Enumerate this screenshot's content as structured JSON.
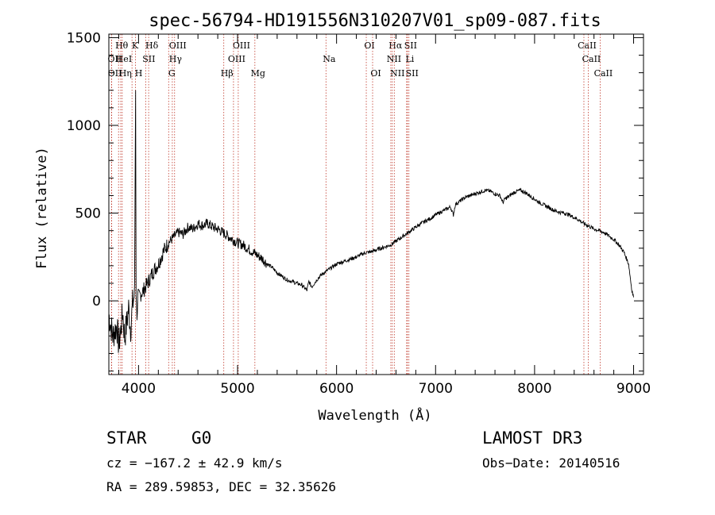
{
  "chart_data": {
    "type": "line",
    "title": "spec-56794-HD191556N310207V01_sp09-087.fits",
    "xlabel": "Wavelength (Å)",
    "ylabel": "Flux (relative)",
    "xlim": [
      3700,
      9100
    ],
    "ylim": [
      -420,
      1520
    ],
    "xticks": [
      4000,
      5000,
      6000,
      7000,
      8000,
      9000
    ],
    "yticks": [
      0,
      500,
      1000,
      1500
    ],
    "series": [
      {
        "name": "flux",
        "x": [
          3700,
          3740,
          3780,
          3800,
          3820,
          3840,
          3860,
          3880,
          3900,
          3920,
          3940,
          3960,
          3970,
          3975,
          3980,
          4000,
          4050,
          4100,
          4150,
          4200,
          4250,
          4300,
          4350,
          4400,
          4450,
          4500,
          4550,
          4600,
          4650,
          4700,
          4750,
          4800,
          4850,
          4900,
          4950,
          5000,
          5050,
          5100,
          5150,
          5200,
          5250,
          5300,
          5350,
          5400,
          5450,
          5500,
          5550,
          5600,
          5650,
          5700,
          5720,
          5750,
          5800,
          5850,
          5900,
          5950,
          6000,
          6050,
          6100,
          6150,
          6200,
          6250,
          6300,
          6350,
          6400,
          6450,
          6500,
          6550,
          6600,
          6650,
          6700,
          6750,
          6800,
          6850,
          6900,
          6950,
          7000,
          7050,
          7100,
          7150,
          7180,
          7200,
          7250,
          7300,
          7350,
          7400,
          7450,
          7500,
          7550,
          7600,
          7650,
          7680,
          7700,
          7750,
          7800,
          7850,
          7900,
          7950,
          8000,
          8050,
          8100,
          8150,
          8200,
          8250,
          8300,
          8350,
          8400,
          8450,
          8500,
          8550,
          8600,
          8650,
          8700,
          8750,
          8800,
          8850,
          8900,
          8950,
          8980,
          9000
        ],
        "y": [
          -80,
          -200,
          -140,
          -250,
          -170,
          -60,
          -210,
          -130,
          -40,
          -160,
          -20,
          40,
          1200,
          30,
          -60,
          20,
          60,
          110,
          170,
          210,
          280,
          330,
          360,
          390,
          380,
          420,
          410,
          440,
          430,
          440,
          420,
          410,
          390,
          370,
          350,
          330,
          320,
          300,
          280,
          260,
          240,
          210,
          190,
          160,
          140,
          120,
          110,
          100,
          90,
          60,
          110,
          80,
          120,
          150,
          170,
          190,
          210,
          220,
          230,
          240,
          250,
          265,
          275,
          280,
          290,
          300,
          310,
          320,
          340,
          360,
          380,
          400,
          420,
          440,
          455,
          470,
          490,
          505,
          520,
          535,
          490,
          550,
          570,
          590,
          600,
          610,
          620,
          630,
          625,
          610,
          600,
          560,
          580,
          600,
          620,
          630,
          620,
          600,
          580,
          560,
          545,
          530,
          515,
          505,
          500,
          490,
          475,
          460,
          440,
          425,
          410,
          400,
          390,
          370,
          350,
          320,
          280,
          210,
          70,
          20
        ]
      }
    ],
    "spectral_lines": [
      {
        "label": "Hθ",
        "x": 3798,
        "row": 1
      },
      {
        "label": "OII",
        "x": 3727,
        "row": 2
      },
      {
        "label": "OII",
        "x": 3729,
        "row": 3
      },
      {
        "label": "HeI",
        "x": 3820,
        "row": 2
      },
      {
        "label": "Hη",
        "x": 3835,
        "row": 3
      },
      {
        "label": "K",
        "x": 3934,
        "row": 1
      },
      {
        "label": "H",
        "x": 3969,
        "row": 3
      },
      {
        "label": "Hδ",
        "x": 4102,
        "row": 1
      },
      {
        "label": "SII",
        "x": 4072,
        "row": 2
      },
      {
        "label": "OIII",
        "x": 4364,
        "row": 1
      },
      {
        "label": "Hγ",
        "x": 4341,
        "row": 2
      },
      {
        "label": "G",
        "x": 4304,
        "row": 3
      },
      {
        "label": "Hβ",
        "x": 4861,
        "row": 3
      },
      {
        "label": "OIII",
        "x": 5007,
        "row": 1
      },
      {
        "label": "OIII",
        "x": 4959,
        "row": 2
      },
      {
        "label": "Mg",
        "x": 5175,
        "row": 3
      },
      {
        "label": "Na",
        "x": 5893,
        "row": 2
      },
      {
        "label": "OI",
        "x": 6300,
        "row": 1
      },
      {
        "label": "OI",
        "x": 6364,
        "row": 3
      },
      {
        "label": "Hα",
        "x": 6563,
        "row": 1
      },
      {
        "label": "SII",
        "x": 6716,
        "row": 1
      },
      {
        "label": "NII",
        "x": 6548,
        "row": 2
      },
      {
        "label": "Li",
        "x": 6708,
        "row": 2
      },
      {
        "label": "NII",
        "x": 6583,
        "row": 3
      },
      {
        "label": "SII",
        "x": 6731,
        "row": 3
      },
      {
        "label": "CaII",
        "x": 8498,
        "row": 1
      },
      {
        "label": "CaII",
        "x": 8542,
        "row": 2
      },
      {
        "label": "CaII",
        "x": 8662,
        "row": 3
      }
    ]
  },
  "info": {
    "object_class": "STAR",
    "subclass": "G0",
    "survey": "LAMOST DR3",
    "cz": "cz = −167.2 ± 42.9 km/s",
    "obs_date": "Obs−Date: 20140516",
    "coords": "RA = 289.59853, DEC =  32.35626"
  }
}
